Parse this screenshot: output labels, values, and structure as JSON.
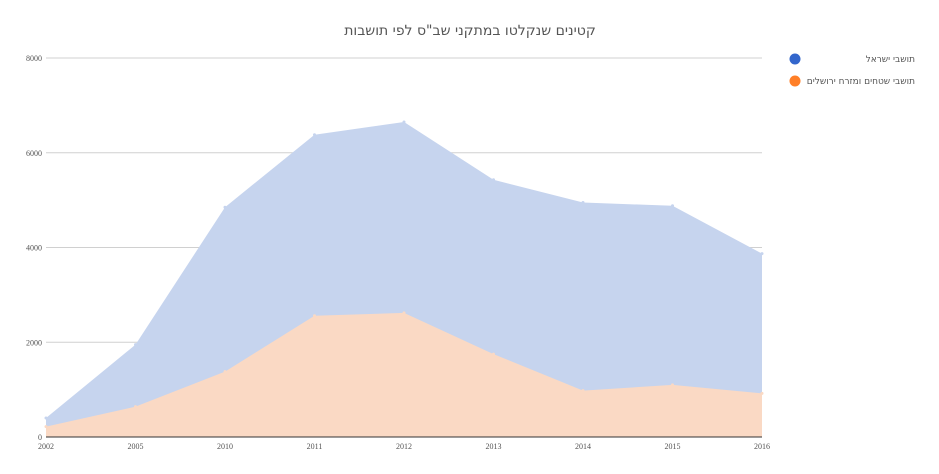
{
  "chart_data": {
    "type": "area",
    "title": "קטינים שנקלטו במתקני שב\"ס לפי תושבות",
    "xlabel": "",
    "ylabel": "",
    "categories": [
      "2002",
      "2005",
      "2010",
      "2011",
      "2012",
      "2013",
      "2014",
      "2015",
      "2016"
    ],
    "ylim": [
      0,
      8000
    ],
    "yticks": [
      0,
      2000,
      4000,
      6000,
      8000
    ],
    "grid": true,
    "stacked": false,
    "legend_position": "right",
    "series": [
      {
        "name": "תושבי ישראל",
        "color": "#3366cc",
        "fill": "#c6d4ee",
        "values": [
          400,
          1950,
          4850,
          6380,
          6650,
          5430,
          4950,
          4880,
          3870
        ]
      },
      {
        "name": "תושבי שטחים ומזרח ירושלים",
        "color": "#ff7f27",
        "fill": "#fad9c4",
        "values": [
          220,
          640,
          1380,
          2560,
          2620,
          1750,
          980,
          1100,
          920
        ]
      }
    ]
  }
}
